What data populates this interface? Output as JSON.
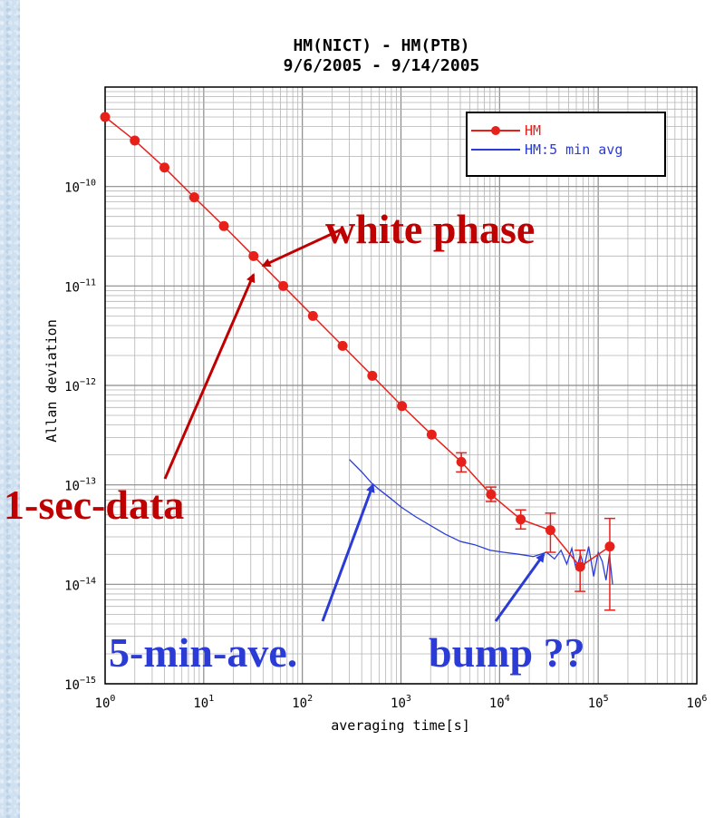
{
  "chart_data": {
    "type": "scatter",
    "title_line1": "HM(NICT) - HM(PTB)",
    "title_line2": "9/6/2005 - 9/14/2005",
    "xlabel": "averaging time[s]",
    "ylabel": "Allan deviation",
    "xscale": "log",
    "yscale": "log",
    "xlim": [
      1,
      1000000
    ],
    "ylim": [
      1e-15,
      1e-09
    ],
    "grid": true,
    "legend_position": "top-right",
    "x_ticks": [
      {
        "value": 1,
        "base": "10",
        "exp": "0"
      },
      {
        "value": 10,
        "base": "10",
        "exp": "1"
      },
      {
        "value": 100,
        "base": "10",
        "exp": "2"
      },
      {
        "value": 1000,
        "base": "10",
        "exp": "3"
      },
      {
        "value": 10000,
        "base": "10",
        "exp": "4"
      },
      {
        "value": 100000,
        "base": "10",
        "exp": "5"
      },
      {
        "value": 1000000,
        "base": "10",
        "exp": "6"
      }
    ],
    "y_ticks": [
      {
        "value": 1e-10,
        "base": "10",
        "exp": "−10"
      },
      {
        "value": 1e-11,
        "base": "10",
        "exp": "−11"
      },
      {
        "value": 1e-12,
        "base": "10",
        "exp": "−12"
      },
      {
        "value": 1e-13,
        "base": "10",
        "exp": "−13"
      },
      {
        "value": 1e-14,
        "base": "10",
        "exp": "−14"
      },
      {
        "value": 1e-15,
        "base": "10",
        "exp": "−15"
      }
    ],
    "series": [
      {
        "name": "HM",
        "color": "#e8201a",
        "marker": "circle",
        "x": [
          1,
          2,
          4,
          8,
          16,
          32,
          64,
          128,
          256,
          512,
          1024,
          2048,
          4096,
          8192,
          16384,
          32768,
          65536,
          131072
        ],
        "y": [
          5e-10,
          2.9e-10,
          1.55e-10,
          7.8e-11,
          4e-11,
          2e-11,
          1e-11,
          5e-12,
          2.5e-12,
          1.25e-12,
          6.2e-13,
          3.2e-13,
          1.7e-13,
          8e-14,
          4.5e-14,
          3.5e-14,
          1.5e-14,
          2.4e-14
        ],
        "err_low": [
          null,
          null,
          null,
          null,
          null,
          null,
          null,
          null,
          null,
          null,
          null,
          null,
          1.35e-13,
          6.8e-14,
          3.6e-14,
          2.1e-14,
          8.5e-15,
          5.5e-15
        ],
        "err_high": [
          null,
          null,
          null,
          null,
          null,
          null,
          null,
          null,
          null,
          null,
          null,
          null,
          2.1e-13,
          9.5e-14,
          5.6e-14,
          5.2e-14,
          2.2e-14,
          4.6e-14
        ]
      },
      {
        "name": "HM:5 min avg",
        "color": "#2b3cd6",
        "x": [
          300,
          400,
          500,
          600,
          800,
          1000,
          1400,
          2000,
          2800,
          4000,
          5600,
          8000,
          11000,
          16000,
          22000,
          30000,
          36000,
          42000,
          48000,
          54000,
          60000,
          66000,
          72000,
          80000,
          90000,
          100000,
          110000,
          120000,
          130000,
          140000
        ],
        "y": [
          1.8e-13,
          1.35e-13,
          1.05e-13,
          9e-14,
          7.2e-14,
          6e-14,
          4.8e-14,
          3.9e-14,
          3.2e-14,
          2.7e-14,
          2.5e-14,
          2.2e-14,
          2.1e-14,
          2e-14,
          1.9e-14,
          2.1e-14,
          1.8e-14,
          2.2e-14,
          1.6e-14,
          2.3e-14,
          1.4e-14,
          2e-14,
          1.5e-14,
          2.4e-14,
          1.2e-14,
          2.1e-14,
          1.7e-14,
          1.1e-14,
          2e-14,
          1e-14
        ]
      }
    ],
    "annotations": [
      {
        "text": "white phase",
        "color": "#c00000",
        "arrow_to": {
          "x": 40,
          "y": 1.6e-11
        }
      },
      {
        "text": "1-sec-data",
        "color": "#c00000",
        "arrow_to": {
          "x": 32,
          "y": 1.3e-11
        }
      },
      {
        "text": "5-min-ave.",
        "color": "#2b3cd6",
        "arrow_to": {
          "x": 520,
          "y": 1e-13
        }
      },
      {
        "text": "bump ??",
        "color": "#2b3cd6",
        "arrow_to": {
          "x": 28000,
          "y": 2e-14
        }
      }
    ]
  }
}
